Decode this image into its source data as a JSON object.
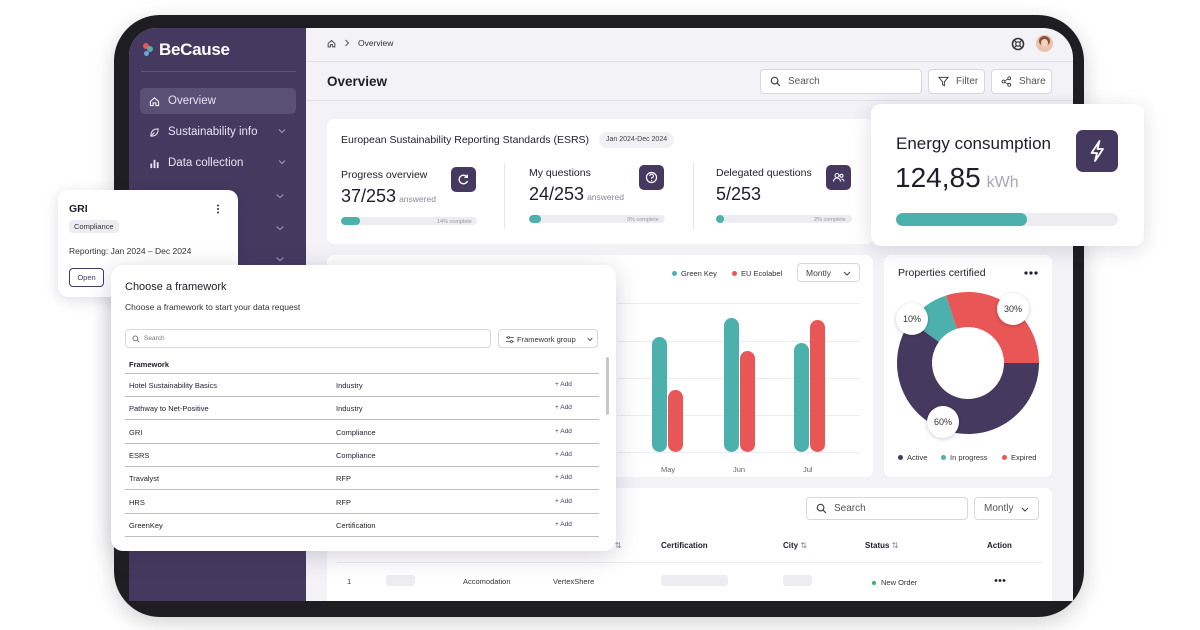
{
  "app": {
    "name": "BeCause"
  },
  "sidebar": {
    "items": [
      {
        "label": "Overview"
      },
      {
        "label": "Sustainability info"
      },
      {
        "label": "Data collection"
      }
    ]
  },
  "breadcrumb": {
    "current": "Overview"
  },
  "header": {
    "title": "Overview",
    "search_placeholder": "Search",
    "filter_label": "Filter",
    "share_label": "Share"
  },
  "esrs": {
    "title": "European Sustainability Reporting Standards (ESRS)",
    "date_range": "Jan 2024-Dec 2024",
    "metrics": [
      {
        "label": "Progress overview",
        "value": "37/253",
        "suffix": "answered",
        "progress": 0.14,
        "progress_label": "14% complete"
      },
      {
        "label": "My questions",
        "value": "24/253",
        "suffix": "answered",
        "progress": 0.09,
        "progress_label": "9% complete"
      },
      {
        "label": "Delegated questions",
        "value": "5/253",
        "suffix": "",
        "progress": 0.02,
        "progress_label": "2% complete"
      }
    ]
  },
  "chart_data": [
    {
      "type": "bar",
      "title": "",
      "categories": [
        "May",
        "Jun",
        "Jul"
      ],
      "series": [
        {
          "name": "Green Key",
          "color": "#4cb0ac",
          "values": [
            82,
            96,
            78
          ]
        },
        {
          "name": "EU Ecolabel",
          "color": "#e95656",
          "values": [
            44,
            72,
            94
          ]
        }
      ],
      "period": "Montly",
      "ylim": [
        0,
        100
      ]
    },
    {
      "type": "pie",
      "title": "Properties certified",
      "labels": [
        "Active",
        "In progress",
        "Expired"
      ],
      "values": [
        60,
        10,
        30
      ],
      "colors": [
        "#45395f",
        "#4cb0ac",
        "#e95656"
      ],
      "value_labels": [
        "60%",
        "10%",
        "30%"
      ]
    }
  ],
  "energy": {
    "title": "Energy consumption",
    "value": "124,85",
    "unit": "kWh",
    "progress": 0.59
  },
  "gri": {
    "title": "GRI",
    "tag": "Compliance",
    "reporting": "Reporting: Jan 2024 – Dec 2024",
    "open_label": "Open",
    "more_icon": "more-vertical-icon"
  },
  "framework_modal": {
    "title": "Choose a framework",
    "subtitle": "Choose a framework to start your data request",
    "search_placeholder": "Search",
    "group_label": "Framework group",
    "column_header": "Framework",
    "add_label": "+ Add",
    "rows": [
      {
        "name": "Hotel Sustainability Basics",
        "type": "Industry"
      },
      {
        "name": "Pathway to Net-Positive",
        "type": "Industry"
      },
      {
        "name": "GRI",
        "type": "Compliance"
      },
      {
        "name": "ESRS",
        "type": "Compliance"
      },
      {
        "name": "Travalyst",
        "type": "RFP"
      },
      {
        "name": "HRS",
        "type": "RFP"
      },
      {
        "name": "GreenKey",
        "type": "Certification"
      }
    ]
  },
  "table": {
    "search_placeholder": "Search",
    "period": "Montly",
    "headers": {
      "col_e": "e",
      "certification": "Certification",
      "city": "City",
      "status": "Status",
      "action": "Action"
    },
    "rows": [
      {
        "index": "1",
        "type": "Accomodation",
        "name": "VertexShere",
        "status": "New Order"
      }
    ]
  }
}
